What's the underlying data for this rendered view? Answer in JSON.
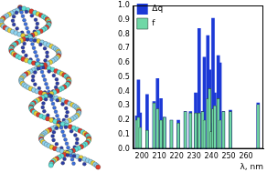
{
  "chart_data": {
    "type": "bar",
    "xlabel": "λ, nm",
    "x": [
      197,
      198,
      199,
      203,
      207,
      209,
      211,
      213,
      217,
      221,
      225,
      228,
      231,
      233,
      235,
      236,
      238,
      239,
      240,
      241,
      242,
      244,
      245,
      247,
      251,
      267
    ],
    "series": [
      {
        "name": "Δq",
        "color": "#1c39d6",
        "values": [
          0.23,
          0.48,
          0.25,
          0.38,
          0.33,
          0.49,
          0.35,
          0.22,
          0.2,
          0.2,
          0.26,
          0.26,
          0.39,
          0.84,
          0.26,
          0.64,
          0.79,
          0.55,
          0.18,
          0.91,
          0.39,
          0.65,
          0.6,
          0.26,
          0.27,
          0.32
        ]
      },
      {
        "name": "f",
        "color": "#6fd8a6",
        "values": [
          0.2,
          0.22,
          0.15,
          0.13,
          0.32,
          0.28,
          0.2,
          0.22,
          0.2,
          0.18,
          0.26,
          0.25,
          0.25,
          0.25,
          0.26,
          0.2,
          0.35,
          0.42,
          0.12,
          0.28,
          0.3,
          0.35,
          0.2,
          0.26,
          0.26,
          0.31
        ]
      }
    ],
    "xlim": [
      195,
      270
    ],
    "xticks": [
      200,
      210,
      220,
      230,
      240,
      250,
      260
    ],
    "ylim": [
      0,
      1
    ],
    "yticks": [
      {
        "value": 0,
        "label": "0.0"
      },
      {
        "value": 0.1,
        "label": "0.1"
      },
      {
        "value": 0.2,
        "label": "0.2"
      },
      {
        "value": 0.3,
        "label": "0.3"
      },
      {
        "value": 0.4,
        "label": "0.4"
      },
      {
        "value": 0.5,
        "label": "0.5"
      },
      {
        "value": 0.6,
        "label": "0.6"
      },
      {
        "value": 0.7,
        "label": "0.7"
      },
      {
        "value": 0.8,
        "label": "0.8"
      },
      {
        "value": 0.9,
        "label": "0.9"
      },
      {
        "value": 1,
        "label": "1.0"
      }
    ],
    "grid": false,
    "legend": "upper left"
  }
}
